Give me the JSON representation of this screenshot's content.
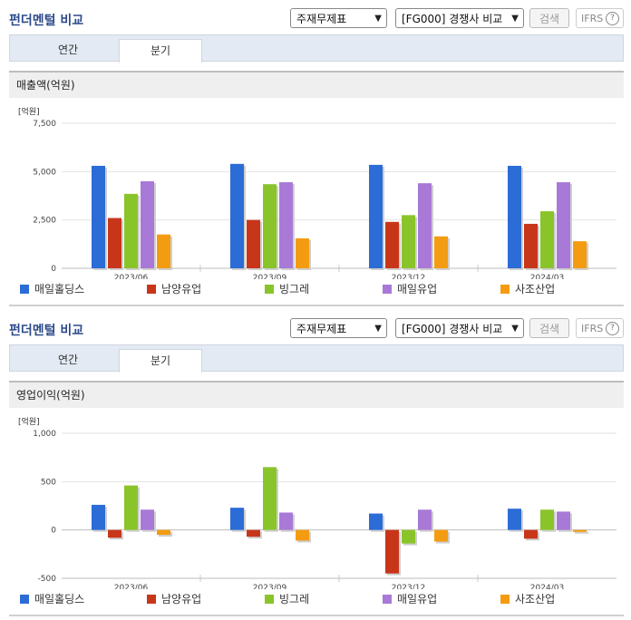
{
  "panels": [
    {
      "title": "펀더멘털 비교",
      "select1": "주재무제표",
      "select2": "[FG000] 경쟁사 비교",
      "search_label": "검색",
      "ifrs_label": "IFRS",
      "ifrs_help": "?",
      "tabs": [
        {
          "label": "연간"
        },
        {
          "label": "분기"
        }
      ],
      "active_tab": "분기",
      "section_title": "매출액(억원)"
    },
    {
      "title": "펀더멘털 비교",
      "select1": "주재무제표",
      "select2": "[FG000] 경쟁사 비교",
      "search_label": "검색",
      "ifrs_label": "IFRS",
      "ifrs_help": "?",
      "tabs": [
        {
          "label": "연간"
        },
        {
          "label": "분기"
        }
      ],
      "active_tab": "분기",
      "section_title": "영업이익(억원)"
    }
  ],
  "legend": [
    {
      "name": "매일홀딩스",
      "color": "#2b6cd6"
    },
    {
      "name": "남양유업",
      "color": "#c8361a"
    },
    {
      "name": "빙그레",
      "color": "#8ac42b"
    },
    {
      "name": "매일유업",
      "color": "#a879d6"
    },
    {
      "name": "사조산업",
      "color": "#f39c12"
    }
  ],
  "chart_data": [
    {
      "type": "bar",
      "unit_label": "[억원]",
      "categories": [
        "2023/06",
        "2023/09",
        "2023/12",
        "2024/03"
      ],
      "ylim": [
        0,
        7500
      ],
      "yticks": [
        0,
        2500,
        5000,
        7500
      ],
      "ytick_labels": [
        "0",
        "2,500",
        "5,000",
        "7,500"
      ],
      "grid": true,
      "legend_position": "bottom",
      "series": [
        {
          "name": "매일홀딩스",
          "color": "#2b6cd6",
          "values": [
            5300,
            5400,
            5350,
            5300
          ]
        },
        {
          "name": "남양유업",
          "color": "#c8361a",
          "values": [
            2600,
            2500,
            2400,
            2300
          ]
        },
        {
          "name": "빙그레",
          "color": "#8ac42b",
          "values": [
            3850,
            4350,
            2750,
            2950
          ]
        },
        {
          "name": "매일유업",
          "color": "#a879d6",
          "values": [
            4500,
            4450,
            4400,
            4450
          ]
        },
        {
          "name": "사조산업",
          "color": "#f39c12",
          "values": [
            1750,
            1550,
            1650,
            1400
          ]
        }
      ]
    },
    {
      "type": "bar",
      "unit_label": "[억원]",
      "categories": [
        "2023/06",
        "2023/09",
        "2023/12",
        "2024/03"
      ],
      "ylim": [
        -500,
        1000
      ],
      "yticks": [
        -500,
        0,
        500,
        1000
      ],
      "ytick_labels": [
        "-500",
        "0",
        "500",
        "1,000"
      ],
      "grid": true,
      "legend_position": "bottom",
      "series": [
        {
          "name": "매일홀딩스",
          "color": "#2b6cd6",
          "values": [
            260,
            230,
            170,
            220
          ]
        },
        {
          "name": "남양유업",
          "color": "#c8361a",
          "values": [
            -80,
            -70,
            -450,
            -90
          ]
        },
        {
          "name": "빙그레",
          "color": "#8ac42b",
          "values": [
            460,
            650,
            -140,
            210
          ]
        },
        {
          "name": "매일유업",
          "color": "#a879d6",
          "values": [
            210,
            180,
            210,
            190
          ]
        },
        {
          "name": "사조산업",
          "color": "#f39c12",
          "values": [
            -50,
            -110,
            -120,
            -20
          ]
        }
      ]
    }
  ]
}
